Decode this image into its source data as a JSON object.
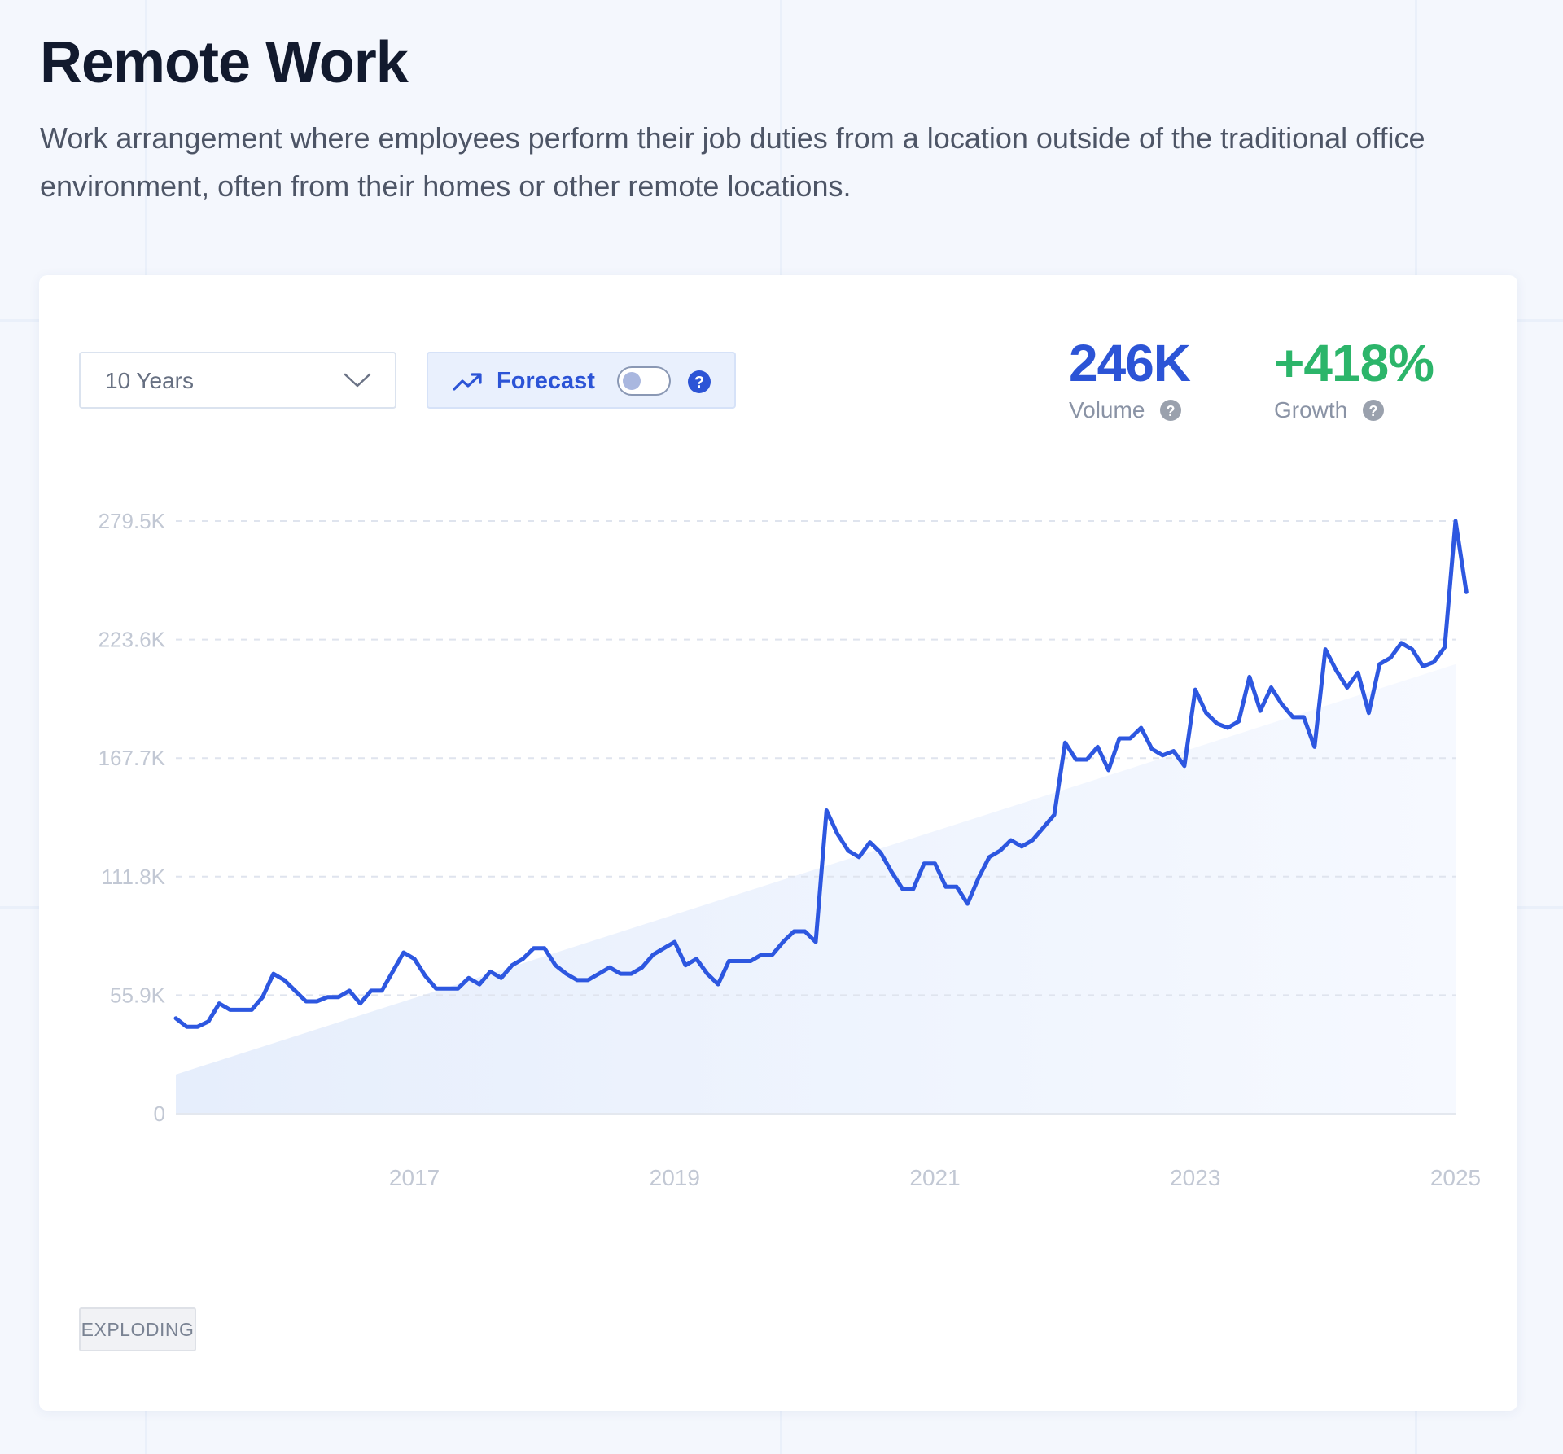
{
  "header": {
    "title": "Remote Work",
    "description": "Work arrangement where employees perform their job duties from a location outside of the traditional office environment, often from their homes or other remote locations."
  },
  "controls": {
    "range_select": {
      "value": "10 Years",
      "icon": "chevron-down-icon"
    },
    "forecast": {
      "label": "Forecast",
      "enabled": false,
      "icon": "trend-up-icon",
      "help_icon": "question-circle-icon"
    }
  },
  "metrics": {
    "volume": {
      "value": "246K",
      "label": "Volume",
      "color": "#2c54d6"
    },
    "growth": {
      "value": "+418%",
      "label": "Growth",
      "color": "#2cb56a"
    }
  },
  "status_badge": "EXPLODING",
  "colors": {
    "line": "#2d57e0",
    "trend_fill": "#e6eefc",
    "gridline": "#dfe4ee",
    "tick_text": "#c2c8d4"
  },
  "chart_data": {
    "type": "line",
    "y_ticks": [
      "0",
      "55.9K",
      "111.8K",
      "167.7K",
      "223.6K",
      "279.5K"
    ],
    "ylim": [
      0,
      279500
    ],
    "x_ticks": [
      "2017",
      "2019",
      "2021",
      "2023",
      "2025"
    ],
    "xlim": [
      "2015-03",
      "2025-01"
    ],
    "grid": true,
    "series": [
      {
        "kind": "search_volume",
        "x_start": "2015-03",
        "x_step": "1 month",
        "values": [
          45000,
          41000,
          41000,
          43500,
          52000,
          49000,
          49000,
          49000,
          55000,
          66000,
          63000,
          58000,
          53000,
          53000,
          55000,
          55000,
          58000,
          52000,
          58000,
          58000,
          67000,
          76000,
          73000,
          65000,
          59000,
          59000,
          59000,
          64000,
          61000,
          67000,
          64000,
          70000,
          73000,
          78000,
          78000,
          70000,
          66000,
          63000,
          63000,
          66000,
          69000,
          66000,
          66000,
          69000,
          75000,
          78000,
          81000,
          70000,
          73000,
          66000,
          61000,
          72000,
          72000,
          72000,
          75000,
          75000,
          81000,
          86000,
          86000,
          81000,
          143000,
          132000,
          124000,
          121000,
          128000,
          123000,
          114000,
          106000,
          106000,
          118000,
          118000,
          107000,
          107000,
          99000,
          111000,
          121000,
          124000,
          129000,
          126000,
          129000,
          135000,
          141000,
          175000,
          167000,
          167000,
          173000,
          162000,
          177000,
          177000,
          182000,
          172000,
          169000,
          171000,
          164000,
          200000,
          189000,
          184000,
          182000,
          185000,
          206000,
          190000,
          201000,
          193000,
          187000,
          187000,
          173000,
          219000,
          209000,
          201000,
          208000,
          189000,
          212000,
          215000,
          222000,
          219000,
          211000,
          213000,
          220000,
          279500,
          246000
        ]
      },
      {
        "kind": "trend",
        "x": [
          "2015-03",
          "2025-01"
        ],
        "values": [
          18500,
          212000
        ]
      }
    ]
  }
}
